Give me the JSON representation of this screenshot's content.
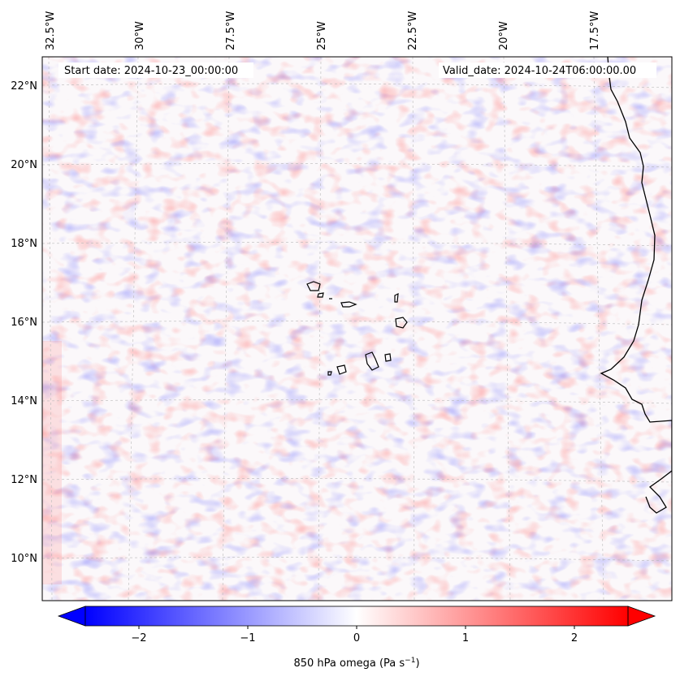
{
  "map": {
    "lon_labels": [
      "32.5°W",
      "30°W",
      "27.5°W",
      "25°W",
      "22.5°W",
      "20°W",
      "17.5°W"
    ],
    "lat_labels": [
      "22°N",
      "20°N",
      "18°N",
      "16°N",
      "14°N",
      "12°N",
      "10°N"
    ],
    "start_date_text": "Start date: 2024-10-23_00:00:00",
    "valid_date_text": "Valid_date: 2024-10-24T06:00:00.00",
    "colormap": "bwr",
    "colors": {
      "negative": "#0000ff",
      "zero": "#ffffff",
      "positive": "#ff0000",
      "coastline": "#000000"
    }
  },
  "colorbar": {
    "ticks": [
      "−2",
      "−1",
      "0",
      "1",
      "2"
    ],
    "label": "850 hPa omega (Pa s",
    "label_sup": "−1",
    "label_end": ")",
    "range": [
      -2.75,
      2.75
    ]
  }
}
